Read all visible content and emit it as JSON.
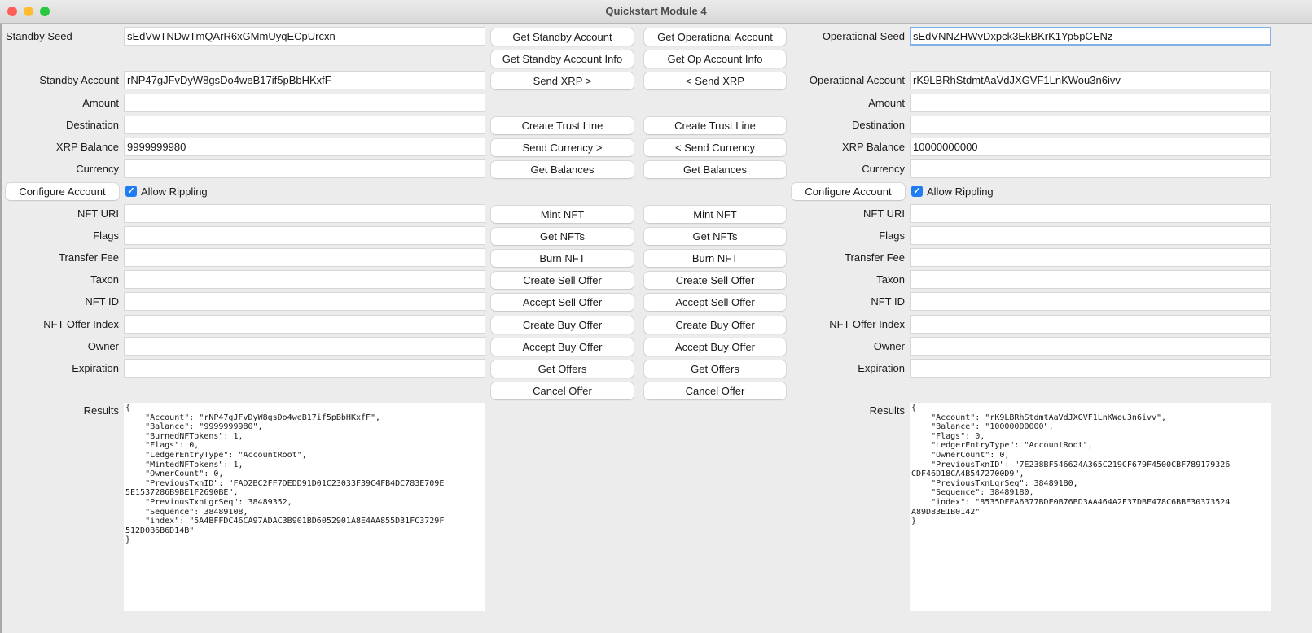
{
  "window": {
    "title": "Quickstart Module 4"
  },
  "left": {
    "seed": {
      "label": "Standby Seed",
      "value": "sEdVwTNDwTmQArR6xGMmUyqECpUrcxn"
    },
    "fields": [
      {
        "row": 2,
        "label": "Standby Account",
        "value": "rNP47gJFvDyW8gsDo4weB17if5pBbHKxfF"
      },
      {
        "row": 3,
        "label": "Amount",
        "value": ""
      },
      {
        "row": 4,
        "label": "Destination",
        "value": ""
      },
      {
        "row": 5,
        "label": "XRP Balance",
        "value": "9999999980"
      },
      {
        "row": 6,
        "label": "Currency",
        "value": ""
      },
      {
        "row": 8,
        "label": "NFT URI",
        "value": ""
      },
      {
        "row": 9,
        "label": "Flags",
        "value": ""
      },
      {
        "row": 10,
        "label": "Transfer Fee",
        "value": ""
      },
      {
        "row": 11,
        "label": "Taxon",
        "value": ""
      },
      {
        "row": 12,
        "label": "NFT ID",
        "value": ""
      },
      {
        "row": 13,
        "label": "NFT Offer Index",
        "value": ""
      },
      {
        "row": 14,
        "label": "Owner",
        "value": ""
      },
      {
        "row": 15,
        "label": "Expiration",
        "value": ""
      }
    ],
    "configure_label": "Configure Account",
    "allow_rippling": {
      "label": "Allow Rippling",
      "checked": true
    },
    "results_label": "Results",
    "results": "{\n    \"Account\": \"rNP47gJFvDyW8gsDo4weB17if5pBbHKxfF\",\n    \"Balance\": \"9999999980\",\n    \"BurnedNFTokens\": 1,\n    \"Flags\": 0,\n    \"LedgerEntryType\": \"AccountRoot\",\n    \"MintedNFTokens\": 1,\n    \"OwnerCount\": 0,\n    \"PreviousTxnID\": \"FAD2BC2FF7DEDD91D01C23033F39C4FB4DC783E709E\n5E1537286B9BE1F2690BE\",\n    \"PreviousTxnLgrSeq\": 38489352,\n    \"Sequence\": 38489108,\n    \"index\": \"5A4BFFDC46CA97ADAC3B901BD6052901A8E4AA855D31FC3729F\n512D0B6B6D14B\"\n}"
  },
  "right": {
    "seed": {
      "label": "Operational Seed",
      "value": "sEdVNNZHWvDxpck3EkBKrK1Yp5pCENz"
    },
    "fields": [
      {
        "row": 2,
        "label": "Operational Account",
        "value": "rK9LBRhStdmtAaVdJXGVF1LnKWou3n6ivv"
      },
      {
        "row": 3,
        "label": "Amount",
        "value": ""
      },
      {
        "row": 4,
        "label": "Destination",
        "value": ""
      },
      {
        "row": 5,
        "label": "XRP Balance",
        "value": "10000000000"
      },
      {
        "row": 6,
        "label": "Currency",
        "value": ""
      },
      {
        "row": 8,
        "label": "NFT URI",
        "value": ""
      },
      {
        "row": 9,
        "label": "Flags",
        "value": ""
      },
      {
        "row": 10,
        "label": "Transfer Fee",
        "value": ""
      },
      {
        "row": 11,
        "label": "Taxon",
        "value": ""
      },
      {
        "row": 12,
        "label": "NFT ID",
        "value": ""
      },
      {
        "row": 13,
        "label": "NFT Offer Index",
        "value": ""
      },
      {
        "row": 14,
        "label": "Owner",
        "value": ""
      },
      {
        "row": 15,
        "label": "Expiration",
        "value": ""
      }
    ],
    "configure_label": "Configure Account",
    "allow_rippling": {
      "label": "Allow Rippling",
      "checked": true
    },
    "results_label": "Results",
    "results": "{\n    \"Account\": \"rK9LBRhStdmtAaVdJXGVF1LnKWou3n6ivv\",\n    \"Balance\": \"10000000000\",\n    \"Flags\": 0,\n    \"LedgerEntryType\": \"AccountRoot\",\n    \"OwnerCount\": 0,\n    \"PreviousTxnID\": \"7E238BF546624A365C219CF679F4500CBF789179326\nCDF46D18CA4B5472700D9\",\n    \"PreviousTxnLgrSeq\": 38489180,\n    \"Sequence\": 38489180,\n    \"index\": \"8535DFEA6377BDE0B76BD3AA464A2F37DBF478C6BBE30373524\nA89D83E1B0142\"\n}"
  },
  "buttons": [
    {
      "row": 0,
      "standby": "Get Standby Account",
      "operational": "Get Operational Account"
    },
    {
      "row": 1,
      "standby": "Get Standby Account Info",
      "operational": "Get Op Account Info"
    },
    {
      "row": 2,
      "standby": "Send XRP >",
      "operational": "< Send XRP"
    },
    {
      "row": 4,
      "standby": "Create Trust Line",
      "operational": "Create Trust Line"
    },
    {
      "row": 5,
      "standby": "Send Currency >",
      "operational": "< Send Currency"
    },
    {
      "row": 6,
      "standby": "Get Balances",
      "operational": "Get Balances"
    },
    {
      "row": 8,
      "standby": "Mint NFT",
      "operational": "Mint NFT"
    },
    {
      "row": 9,
      "standby": "Get NFTs",
      "operational": "Get NFTs"
    },
    {
      "row": 10,
      "standby": "Burn NFT",
      "operational": "Burn NFT"
    },
    {
      "row": 11,
      "standby": "Create Sell Offer",
      "operational": "Create Sell Offer"
    },
    {
      "row": 12,
      "standby": "Accept Sell Offer",
      "operational": "Accept Sell Offer"
    },
    {
      "row": 13,
      "standby": "Create Buy Offer",
      "operational": "Create Buy Offer"
    },
    {
      "row": 14,
      "standby": "Accept Buy Offer",
      "operational": "Accept Buy Offer"
    },
    {
      "row": 15,
      "standby": "Get Offers",
      "operational": "Get Offers"
    },
    {
      "row": 16,
      "standby": "Cancel Offer",
      "operational": "Cancel Offer"
    }
  ],
  "colors": {
    "accent": "#1f7cf3",
    "close": "#ff5f57",
    "minimize": "#febc2e",
    "zoom": "#28c840"
  }
}
